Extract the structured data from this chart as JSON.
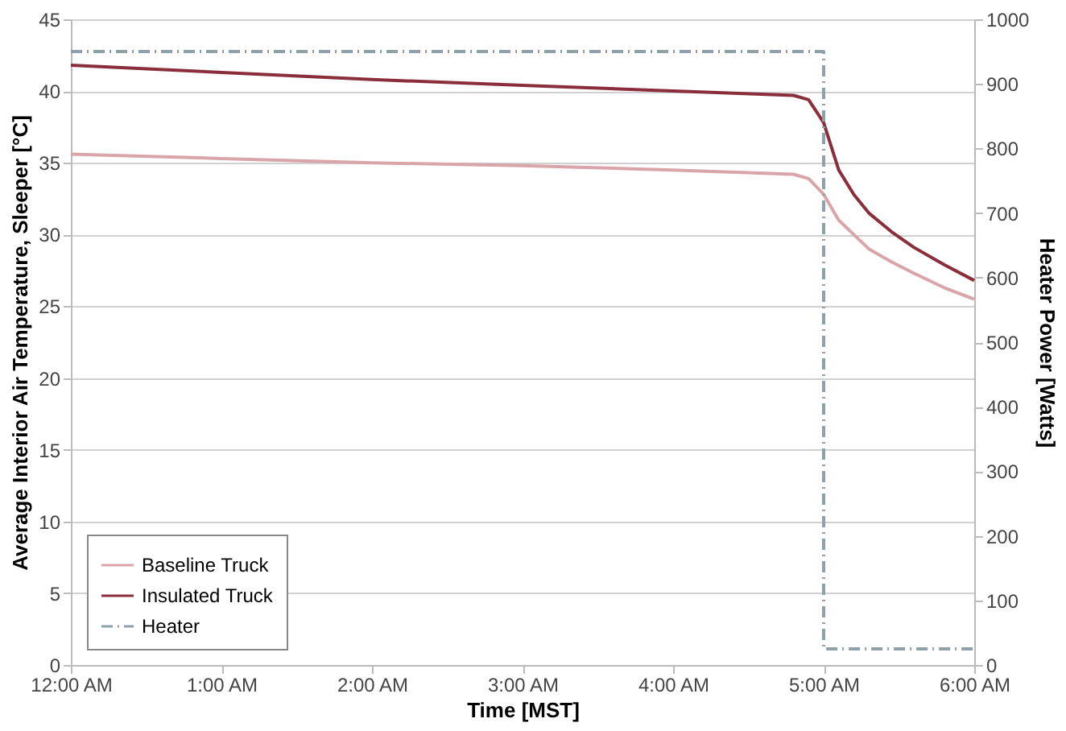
{
  "chart_data": {
    "type": "line",
    "xlabel": "Time [MST]",
    "ylabel": "Average Interior Air Temperature, Sleeper [°C]",
    "y2label": "Heater Power [Watts]",
    "x": [
      0,
      1,
      2,
      3,
      4,
      4.8,
      4.9,
      5.0,
      5.1,
      5.2,
      5.3,
      5.45,
      5.6,
      5.8,
      6
    ],
    "series": [
      {
        "name": "Baseline Truck",
        "color": "#d9a5a9",
        "line_style": "solid",
        "values": [
          35.6,
          35.3,
          35.0,
          34.8,
          34.5,
          34.2,
          33.9,
          32.8,
          31.0,
          30.0,
          29.0,
          28.1,
          27.3,
          26.3,
          25.5
        ]
      },
      {
        "name": "Insulated Truck",
        "color": "#8b2e3b",
        "line_style": "solid",
        "values": [
          41.8,
          41.3,
          40.8,
          40.4,
          40.0,
          39.7,
          39.4,
          37.8,
          34.5,
          32.8,
          31.5,
          30.2,
          29.1,
          27.9,
          26.8
        ]
      },
      {
        "name": "Heater",
        "color": "#8ea0a8",
        "line_style": "dashed",
        "axis": "y2",
        "x": [
          0,
          5.0,
          5.0,
          6
        ],
        "values": [
          950,
          950,
          25,
          25
        ]
      }
    ],
    "xlim": [
      0,
      6
    ],
    "xticks": [
      {
        "value": 0,
        "label": "12:00 AM"
      },
      {
        "value": 1,
        "label": "1:00 AM"
      },
      {
        "value": 2,
        "label": "2:00 AM"
      },
      {
        "value": 3,
        "label": "3:00 AM"
      },
      {
        "value": 4,
        "label": "4:00 AM"
      },
      {
        "value": 5,
        "label": "5:00 AM"
      },
      {
        "value": 6,
        "label": "6:00 AM"
      }
    ],
    "ylim": [
      0,
      45
    ],
    "yticks": [
      0,
      5,
      10,
      15,
      20,
      25,
      30,
      35,
      40,
      45
    ],
    "y2lim": [
      0,
      1000
    ],
    "y2ticks": [
      0,
      100,
      200,
      300,
      400,
      500,
      600,
      700,
      800,
      900,
      1000
    ],
    "grid": "y",
    "legend": "bottom left",
    "marker": "none"
  }
}
